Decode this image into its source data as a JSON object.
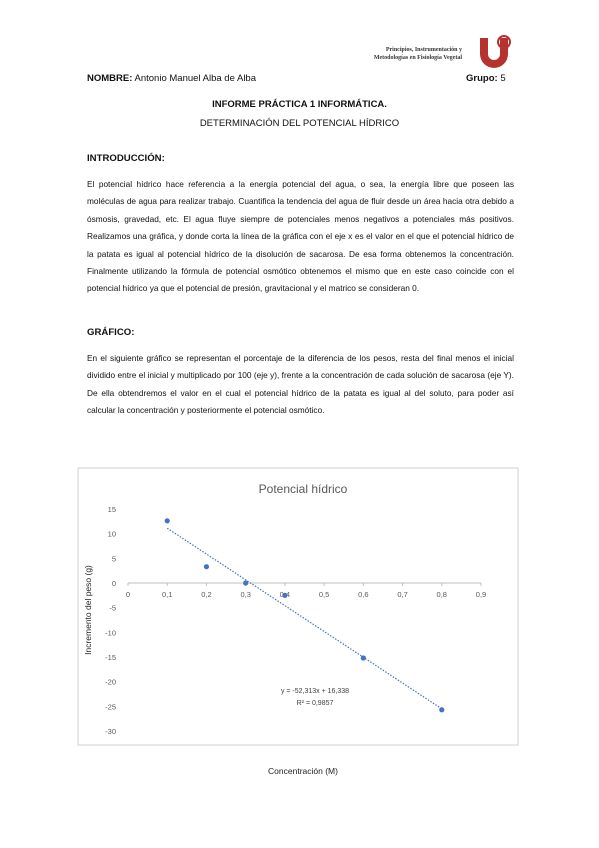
{
  "header": {
    "institution": [
      "Principios, Instrumentación y",
      "Metodologías en Fisiología Vegetal"
    ]
  },
  "name_label": "NOMBRE:",
  "name": "Antonio Manuel Alba de Alba",
  "group_label": "Grupo:",
  "group": 5,
  "title": "INFORME PRÁCTICA 1 INFORMÁTICA.",
  "subtitle": "DETERMINACIÓN DEL POTENCIAL HÍDRICO",
  "sections": [
    {
      "heading": "INTRODUCCIÓN:",
      "text": "El potencial hídrico hace referencia a la energía potencial del agua, o sea, la energía libre que poseen las moléculas de agua para realizar trabajo. Cuantifica la tendencia del agua de fluir desde un área hacia otra debido a ósmosis, gravedad, etc. El agua fluye siempre de potenciales menos negativos a potenciales más positivos. Realizamos una gráfica, y donde corta la línea de la gráfica con el eje x es el valor en el que el potencial hídrico de la patata es igual al potencial hídrico de la disolución de sacarosa. De esa forma obtenemos la concentración. Finalmente utilizando la fórmula de potencial osmótico obtenemos el mismo que en este caso coincide con el potencial hídrico ya que el potencial de presión, gravitacional y el matrico se consideran 0."
    },
    {
      "heading": "GRÁFICO:",
      "text": "En el siguiente gráfico se representan el porcentaje de la diferencia de los pesos, resta del final menos el inicial dividido entre el inicial y multiplicado por 100 (eje y), frente a la concentración de cada solución de sacarosa (eje Y). De ella obtendremos el valor en el cual el potencial hídrico de la patata es igual al del soluto, para poder así calcular la concentración y posteriormente el potencial osmótico."
    }
  ],
  "chart_data": {
    "type": "scatter",
    "title": "Potencial hídrico",
    "x_label": "Concentración (M)",
    "y_label": "Incremento del peso (g)",
    "x": [
      0.1,
      0.2,
      0.3,
      0.4,
      0.6,
      0.8
    ],
    "values": [
      12.6,
      3.3,
      0,
      -2.5,
      -15.2,
      -25.7
    ],
    "color": "#4472c4",
    "xlim": [
      0,
      0.9
    ],
    "ylim": [
      -30,
      15
    ],
    "xticks": [
      0,
      {
        "value": 0.1,
        "label": "0,1"
      },
      {
        "value": 0.2,
        "label": "0,2"
      },
      {
        "value": 0.3,
        "label": "0,3"
      },
      {
        "value": 0.4,
        "label": "0,4"
      },
      {
        "value": 0.5,
        "label": "0,5"
      },
      {
        "value": 0.6,
        "label": "0,6"
      },
      {
        "value": 0.7,
        "label": "0,7"
      },
      {
        "value": 0.8,
        "label": "0,8"
      },
      {
        "value": 0.9,
        "label": "0,9"
      }
    ],
    "yticks": [
      -30,
      -25,
      -20,
      -15,
      -10,
      -5,
      0,
      5,
      10,
      15
    ],
    "grid": false,
    "trendline": {
      "slope": -52.313,
      "intercept": 16.338,
      "label": "y = -52,313x + 16,338",
      "r2_label": "R² = 0,9857"
    }
  }
}
